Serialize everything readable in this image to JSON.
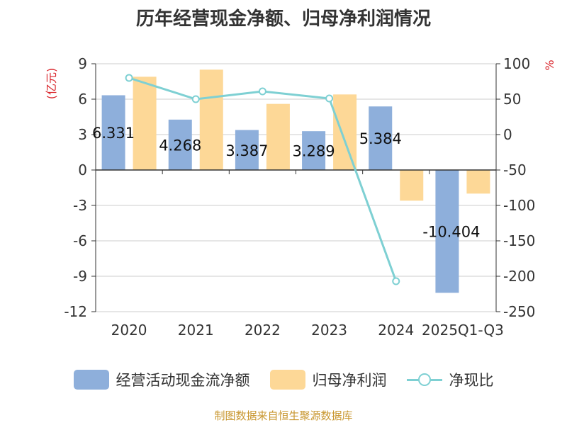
{
  "chart_data": {
    "type": "bar",
    "title": "历年经营现金净额、归母净利润情况",
    "left_axis_label": "(亿元)",
    "right_axis_label": "%",
    "categories": [
      "2020",
      "2021",
      "2022",
      "2023",
      "2024",
      "2025Q1-Q3"
    ],
    "left_ticks": [
      "9",
      "6",
      "3",
      "0",
      "-3",
      "-6",
      "-9",
      "-12"
    ],
    "right_ticks": [
      "100",
      "50",
      "0",
      "-50",
      "-100",
      "-150",
      "-200",
      "-250"
    ],
    "ylim_left": [
      -12,
      9
    ],
    "ylim_right": [
      -250,
      100
    ],
    "series": [
      {
        "name": "经营活动现金流净额",
        "type": "bar",
        "axis": "left",
        "values": [
          6.331,
          4.268,
          3.387,
          3.289,
          5.384,
          -10.404
        ],
        "labels": [
          "6.331",
          "4.268",
          "3.387",
          "3.289",
          "5.384",
          "-10.404"
        ],
        "color": "#8eafdb"
      },
      {
        "name": "归母净利润",
        "type": "bar",
        "axis": "left",
        "values": [
          7.9,
          8.5,
          5.6,
          6.4,
          -2.6,
          -2.0
        ],
        "color": "#fdd897"
      },
      {
        "name": "净现比",
        "type": "line",
        "axis": "right",
        "values": [
          80,
          50,
          61,
          51,
          -207,
          null
        ],
        "color": "#7ed0d3"
      }
    ],
    "grid": true,
    "legend_position": "bottom"
  },
  "source": "制图数据来自恒生聚源数据库"
}
